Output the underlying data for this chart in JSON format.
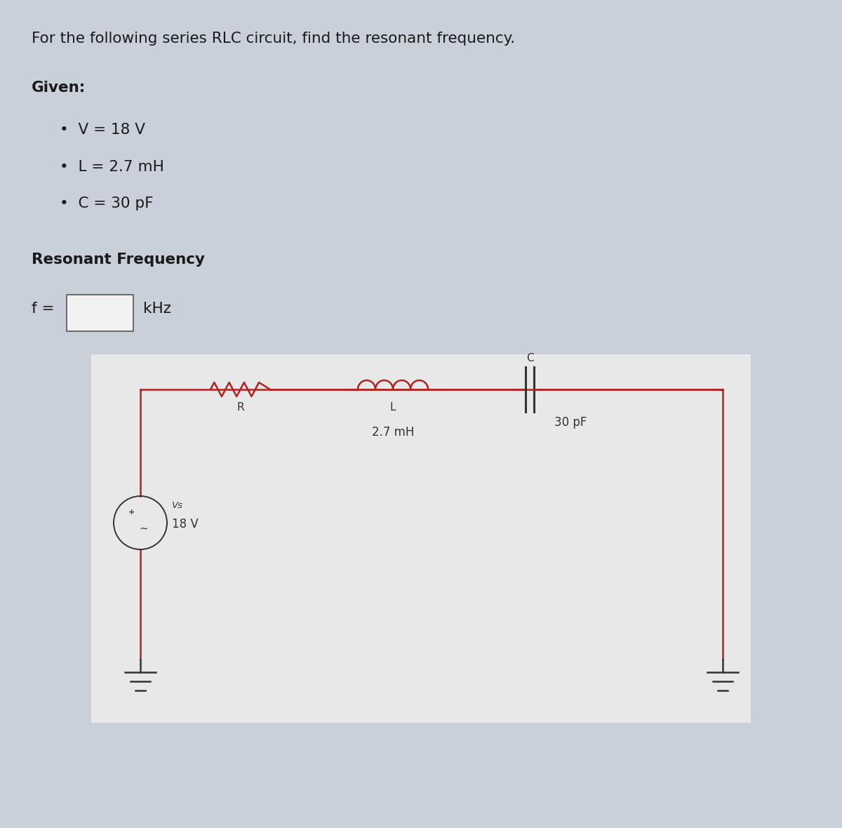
{
  "title_text": "For the following series RLC circuit, find the resonant frequency.",
  "given_label": "Given:",
  "bullets": [
    "V = 18 V",
    "L = 2.7 mH",
    "C = 30 pF"
  ],
  "resonant_label": "Resonant Frequency",
  "freq_label": "f =",
  "freq_unit": "kHz",
  "bg_color": "#c9d0d9",
  "circuit_bg": "#e8e8e8",
  "wire_color": "#b22222",
  "text_color": "#1a1a1a",
  "vs_label": "Vs",
  "vs_value": "18 V",
  "R_label": "R",
  "L_label": "L",
  "L_value": "2.7 mH",
  "C_label": "C",
  "C_value": "30 pF",
  "fig_width": 12.0,
  "fig_height": 11.8
}
